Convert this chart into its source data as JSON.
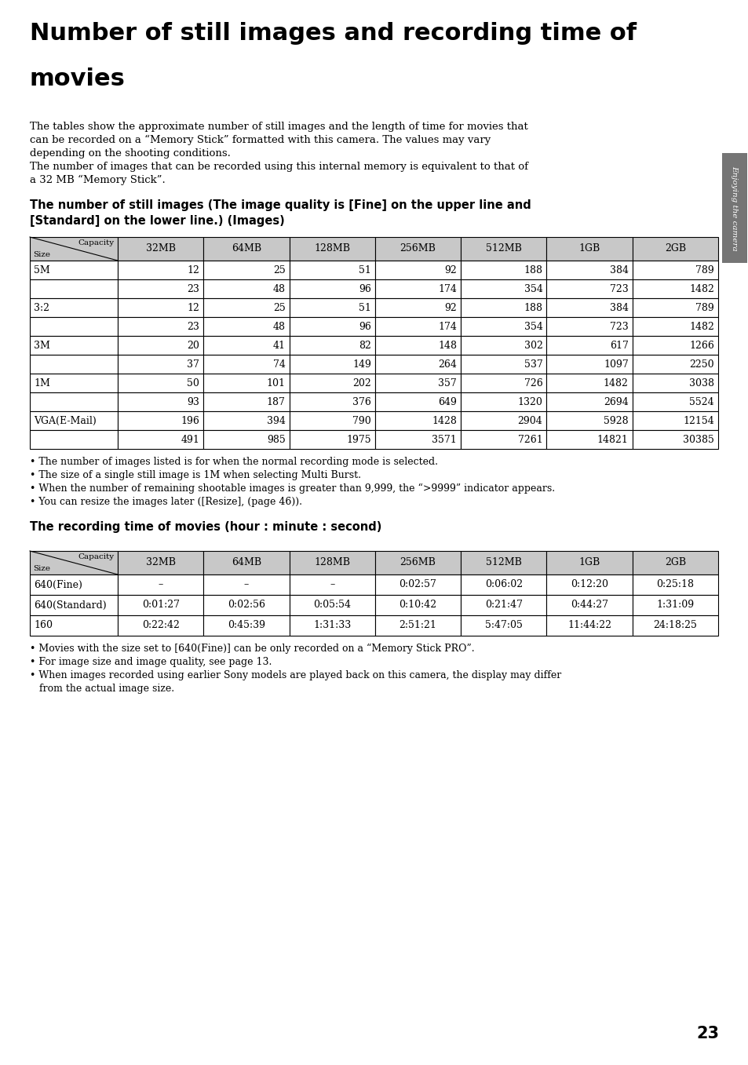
{
  "title_line1": "Number of still images and recording time of",
  "title_line2": "movies",
  "intro_text_lines": [
    "The tables show the approximate number of still images and the length of time for movies that",
    "can be recorded on a “Memory Stick” formatted with this camera. The values may vary",
    "depending on the shooting conditions.",
    "The number of images that can be recorded using this internal memory is equivalent to that of",
    "a 32 MB “Memory Stick”."
  ],
  "table1_heading_line1": "The number of still images (The image quality is [Fine] on the upper line and",
  "table1_heading_line2": "[Standard] on the lower line.) (Images)",
  "table1_columns": [
    "32MB",
    "64MB",
    "128MB",
    "256MB",
    "512MB",
    "1GB",
    "2GB"
  ],
  "table1_rows": [
    {
      "size": "5M",
      "fine": [
        "12",
        "25",
        "51",
        "92",
        "188",
        "384",
        "789"
      ],
      "standard": [
        "23",
        "48",
        "96",
        "174",
        "354",
        "723",
        "1482"
      ]
    },
    {
      "size": "3:2",
      "fine": [
        "12",
        "25",
        "51",
        "92",
        "188",
        "384",
        "789"
      ],
      "standard": [
        "23",
        "48",
        "96",
        "174",
        "354",
        "723",
        "1482"
      ]
    },
    {
      "size": "3M",
      "fine": [
        "20",
        "41",
        "82",
        "148",
        "302",
        "617",
        "1266"
      ],
      "standard": [
        "37",
        "74",
        "149",
        "264",
        "537",
        "1097",
        "2250"
      ]
    },
    {
      "size": "1M",
      "fine": [
        "50",
        "101",
        "202",
        "357",
        "726",
        "1482",
        "3038"
      ],
      "standard": [
        "93",
        "187",
        "376",
        "649",
        "1320",
        "2694",
        "5524"
      ]
    },
    {
      "size": "VGA(E-Mail)",
      "fine": [
        "196",
        "394",
        "790",
        "1428",
        "2904",
        "5928",
        "12154"
      ],
      "standard": [
        "491",
        "985",
        "1975",
        "3571",
        "7261",
        "14821",
        "30385"
      ]
    }
  ],
  "table1_notes": [
    "• The number of images listed is for when the normal recording mode is selected.",
    "• The size of a single still image is 1M when selecting Multi Burst.",
    "• When the number of remaining shootable images is greater than 9,999, the “>9999” indicator appears.",
    "• You can resize the images later ([Resize], (page 46))."
  ],
  "table2_heading": "The recording time of movies (hour : minute : second)",
  "table2_columns": [
    "32MB",
    "64MB",
    "128MB",
    "256MB",
    "512MB",
    "1GB",
    "2GB"
  ],
  "table2_rows": [
    {
      "size": "640(Fine)",
      "values": [
        "–",
        "–",
        "–",
        "0:02:57",
        "0:06:02",
        "0:12:20",
        "0:25:18"
      ]
    },
    {
      "size": "640(Standard)",
      "values": [
        "0:01:27",
        "0:02:56",
        "0:05:54",
        "0:10:42",
        "0:21:47",
        "0:44:27",
        "1:31:09"
      ]
    },
    {
      "size": "160",
      "values": [
        "0:22:42",
        "0:45:39",
        "1:31:33",
        "2:51:21",
        "5:47:05",
        "11:44:22",
        "24:18:25"
      ]
    }
  ],
  "table2_notes": [
    "• Movies with the size set to [640(Fine)] can be only recorded on a “Memory Stick PRO”.",
    "• For image size and image quality, see page 13.",
    "• When images recorded using earlier Sony models are played back on this camera, the display may differ",
    "   from the actual image size."
  ],
  "page_number": "23",
  "sidebar_text": "Enjoying the camera",
  "header_color": "#c8c8c8",
  "bg_color": "#ffffff",
  "text_color": "#000000",
  "sidebar_color": "#757575"
}
